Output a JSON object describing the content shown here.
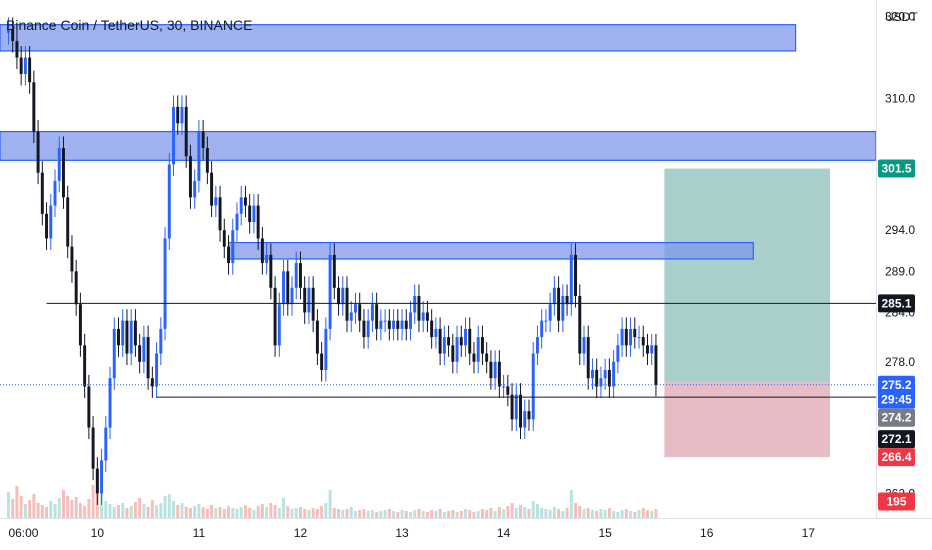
{
  "header": {
    "title": "Binance Coin / TetherUS, 30, BINANCE"
  },
  "colors": {
    "up": "#2962ff",
    "down": "#131722",
    "zone_fill": "#7f98ea",
    "zone_stroke": "#2962ff",
    "profit_zone": "#a9cfcd",
    "loss_zone": "#e7bcc4",
    "level_line": "#131722",
    "current_price": "#2962ff",
    "target": "#089981",
    "stop": "#f23645"
  },
  "chart_data": {
    "type": "candlestick",
    "symbol": "Binance Coin / TetherUS",
    "interval": "30",
    "exchange": "BINANCE",
    "y_unit": "USDT",
    "ylim": [
      259.0,
      322.0
    ],
    "y_ticks": [
      "262.0",
      "278.0",
      "284.0",
      "289.0",
      "294.0",
      "310.0",
      "320.0"
    ],
    "x_labels": [
      "06:00",
      "10",
      "11",
      "12",
      "13",
      "14",
      "15",
      "16",
      "17"
    ],
    "x_label_positions": [
      0,
      21,
      45,
      69,
      93,
      117,
      141,
      165,
      189
    ],
    "xlim": [
      -2,
      205
    ],
    "candles_open_start": 318.0,
    "closes": [
      318.5,
      317.0,
      315.0,
      313.0,
      315.0,
      312.0,
      306.0,
      301.0,
      296.0,
      293.0,
      297.0,
      300.0,
      304.0,
      298.0,
      292.0,
      289.0,
      285.0,
      280.0,
      275.0,
      270.0,
      265.0,
      262.0,
      266.0,
      270.0,
      276.0,
      282.0,
      280.0,
      283.0,
      279.0,
      283.0,
      280.0,
      278.0,
      281.0,
      276.0,
      275.0,
      279.0,
      282.0,
      293.0,
      302.0,
      309.0,
      307.0,
      309.0,
      303.0,
      298.0,
      300.0,
      306.0,
      304.0,
      301.0,
      297.0,
      298.0,
      294.0,
      292.0,
      290.0,
      294.0,
      296.0,
      298.0,
      297.0,
      295.0,
      297.0,
      293.0,
      290.0,
      291.0,
      287.0,
      280.0,
      285.0,
      289.0,
      285.0,
      287.0,
      290.0,
      287.0,
      284.0,
      287.0,
      283.0,
      279.0,
      277.0,
      282.0,
      291.0,
      287.0,
      285.0,
      287.0,
      283.0,
      284.0,
      285.0,
      283.0,
      281.0,
      283.0,
      285.0,
      282.0,
      283.0,
      283.0,
      282.0,
      283.0,
      282.0,
      283.0,
      282.0,
      284.0,
      286.0,
      283.0,
      284.0,
      283.0,
      281.0,
      282.0,
      279.0,
      281.0,
      280.0,
      278.0,
      281.0,
      280.0,
      282.0,
      279.0,
      278.0,
      281.0,
      279.0,
      278.0,
      276.0,
      278.0,
      275.0,
      275.0,
      274.0,
      271.0,
      274.0,
      270.0,
      272.0,
      271.0,
      279.0,
      281.0,
      283.0,
      283.0,
      285.0,
      287.0,
      283.0,
      286.0,
      285.0,
      291.0,
      286.0,
      279.0,
      281.0,
      276.0,
      277.0,
      275.0,
      276.0,
      277.0,
      275.0,
      278.0,
      280.0,
      282.0,
      280.0,
      282.0,
      281.0,
      281.0,
      280.0,
      279.0,
      280.0,
      275.2
    ],
    "volumes": [
      52,
      38,
      64,
      44,
      28,
      36,
      48,
      30,
      26,
      22,
      34,
      28,
      40,
      56,
      44,
      36,
      42,
      30,
      24,
      38,
      66,
      92,
      50,
      34,
      28,
      22,
      26,
      30,
      20,
      24,
      32,
      40,
      28,
      22,
      36,
      26,
      30,
      44,
      48,
      34,
      26,
      30,
      22,
      20,
      24,
      28,
      22,
      18,
      26,
      20,
      22,
      18,
      24,
      20,
      18,
      22,
      26,
      20,
      16,
      24,
      28,
      22,
      30,
      26,
      20,
      40,
      24,
      18,
      20,
      22,
      18,
      16,
      20,
      18,
      24,
      30,
      56,
      20,
      18,
      16,
      18,
      22,
      14,
      16,
      18,
      14,
      16,
      12,
      14,
      16,
      18,
      14,
      12,
      16,
      14,
      12,
      16,
      18,
      14,
      12,
      16,
      14,
      18,
      12,
      14,
      16,
      12,
      14,
      18,
      16,
      12,
      14,
      18,
      16,
      20,
      14,
      22,
      18,
      24,
      30,
      20,
      26,
      22,
      18,
      34,
      28,
      20,
      18,
      16,
      22,
      18,
      14,
      20,
      56,
      30,
      24,
      18,
      20,
      16,
      14,
      18,
      16,
      20,
      14,
      12,
      16,
      18,
      14,
      12,
      16,
      20,
      16,
      14,
      18
    ],
    "zones": [
      {
        "from": 315.8,
        "to": 319.0,
        "x_start": -2,
        "x_end": 186
      },
      {
        "from": 302.5,
        "to": 306.0,
        "x_start": -2,
        "x_end": 205
      },
      {
        "from": 290.5,
        "to": 292.5,
        "x_start": 52,
        "x_end": 176
      }
    ],
    "levels": [
      {
        "price": 285.1,
        "x_start": 9,
        "x_end": 205
      },
      {
        "price": 273.7,
        "x_start": 35,
        "x_end": 205
      }
    ],
    "position": {
      "entry": 275.5,
      "target": 301.5,
      "stop": 266.4,
      "x_start": 155,
      "x_end": 206
    },
    "price_tags": [
      {
        "label": "301.5",
        "price": 301.5,
        "color": "#089981"
      },
      {
        "label": "285.1",
        "price": 285.1,
        "color": "#131722"
      },
      {
        "label": "275.2",
        "price": 275.2,
        "color": "#2962ff"
      },
      {
        "label": "29:45",
        "price": 273.4,
        "color": "#2962ff"
      },
      {
        "label": "274.2",
        "price": 271.2,
        "color": "#787b86"
      },
      {
        "label": "272.1",
        "price": 268.6,
        "color": "#131722"
      },
      {
        "label": "266.4",
        "price": 266.4,
        "color": "#f23645"
      },
      {
        "label": "195",
        "price": 261.0,
        "color": "#f23645"
      }
    ]
  }
}
